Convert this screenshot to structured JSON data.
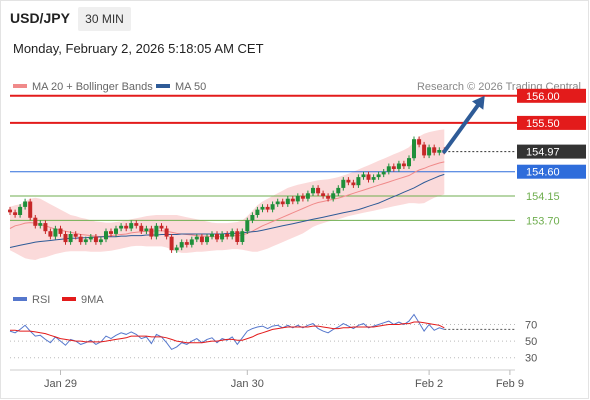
{
  "header": {
    "symbol": "USD/JPY",
    "interval": "30 MIN",
    "datetime": "Monday, February 2, 2026 5:18:05 AM CET"
  },
  "legend": {
    "items": [
      {
        "label": "MA 20 + Bollinger Bands",
        "color": "#f08a8a"
      },
      {
        "label": "MA 50",
        "color": "#2e5b97"
      }
    ],
    "credit": "Research © 2026 Trading Central"
  },
  "price_levels": [
    {
      "label": "156.00",
      "value": 156.0,
      "kind": "resistance",
      "color": "#e31b1b"
    },
    {
      "label": "155.50",
      "value": 155.5,
      "kind": "resistance",
      "color": "#e31b1b"
    },
    {
      "label": "154.97",
      "value": 154.97,
      "kind": "last",
      "color": "#333333"
    },
    {
      "label": "154.60",
      "value": 154.6,
      "kind": "pivot",
      "color": "#2f6ddb"
    },
    {
      "label": "154.15",
      "value": 154.15,
      "kind": "support",
      "color": "#6fae4f"
    },
    {
      "label": "153.70",
      "value": 153.7,
      "kind": "support",
      "color": "#6fae4f"
    }
  ],
  "rsi_panel": {
    "legend": [
      {
        "label": "RSI",
        "color": "#5577cc"
      },
      {
        "label": "9MA",
        "color": "#e31b1b"
      }
    ],
    "ticks": [
      {
        "label": "70",
        "value": 70
      },
      {
        "label": "50",
        "value": 50
      },
      {
        "label": "30",
        "value": 30
      }
    ]
  },
  "x_axis": {
    "ticks": [
      {
        "label": "Jan 29",
        "index": 10
      },
      {
        "label": "Jan 30",
        "index": 47
      },
      {
        "label": "Feb 2",
        "index": 83
      },
      {
        "label": "Feb 9",
        "index": 99
      }
    ]
  },
  "colors": {
    "up": "#1f8f3a",
    "down": "#c62828",
    "band_fill": "#fbdada",
    "ma20": "#f08a8a",
    "ma50": "#2e5b97",
    "arrow": "#2e5b97",
    "rsi": "#5577cc",
    "rsi_ma": "#e31b1b"
  },
  "chart_data": {
    "type": "candlestick",
    "symbol": "USD/JPY",
    "interval": "30 MIN",
    "ylim": [
      152.6,
      156.2
    ],
    "xlim": [
      0,
      100
    ],
    "candles": [
      [
        153.9,
        153.85
      ],
      [
        153.85,
        153.8
      ],
      [
        153.8,
        153.95
      ],
      [
        153.95,
        154.05
      ],
      [
        154.05,
        153.75
      ],
      [
        153.75,
        153.6
      ],
      [
        153.6,
        153.65
      ],
      [
        153.65,
        153.5
      ],
      [
        153.5,
        153.4
      ],
      [
        153.4,
        153.55
      ],
      [
        153.55,
        153.45
      ],
      [
        153.45,
        153.3
      ],
      [
        153.3,
        153.45
      ],
      [
        153.45,
        153.4
      ],
      [
        153.4,
        153.3
      ],
      [
        153.3,
        153.35
      ],
      [
        153.35,
        153.4
      ],
      [
        153.4,
        153.3
      ],
      [
        153.3,
        153.35
      ],
      [
        153.35,
        153.5
      ],
      [
        153.5,
        153.45
      ],
      [
        153.45,
        153.55
      ],
      [
        153.55,
        153.6
      ],
      [
        153.6,
        153.55
      ],
      [
        153.55,
        153.65
      ],
      [
        153.65,
        153.6
      ],
      [
        153.6,
        153.5
      ],
      [
        153.5,
        153.55
      ],
      [
        153.55,
        153.4
      ],
      [
        153.4,
        153.6
      ],
      [
        153.6,
        153.55
      ],
      [
        153.55,
        153.4
      ],
      [
        153.4,
        153.15
      ],
      [
        153.15,
        153.2
      ],
      [
        153.2,
        153.3
      ],
      [
        153.3,
        153.25
      ],
      [
        153.25,
        153.35
      ],
      [
        153.35,
        153.4
      ],
      [
        153.4,
        153.3
      ],
      [
        153.3,
        153.4
      ],
      [
        153.4,
        153.45
      ],
      [
        153.45,
        153.35
      ],
      [
        153.35,
        153.45
      ],
      [
        153.45,
        153.4
      ],
      [
        153.4,
        153.5
      ],
      [
        153.5,
        153.3
      ],
      [
        153.3,
        153.5
      ],
      [
        153.5,
        153.7
      ],
      [
        153.7,
        153.8
      ],
      [
        153.8,
        153.9
      ],
      [
        153.9,
        153.95
      ],
      [
        153.95,
        153.9
      ],
      [
        153.9,
        154.0
      ],
      [
        154.0,
        154.05
      ],
      [
        154.05,
        154.0
      ],
      [
        154.0,
        154.1
      ],
      [
        154.1,
        154.05
      ],
      [
        154.05,
        154.15
      ],
      [
        154.15,
        154.1
      ],
      [
        154.1,
        154.2
      ],
      [
        154.2,
        154.3
      ],
      [
        154.3,
        154.2
      ],
      [
        154.2,
        154.15
      ],
      [
        154.15,
        154.1
      ],
      [
        154.1,
        154.2
      ],
      [
        154.2,
        154.3
      ],
      [
        154.3,
        154.45
      ],
      [
        154.45,
        154.4
      ],
      [
        154.4,
        154.35
      ],
      [
        154.35,
        154.5
      ],
      [
        154.5,
        154.55
      ],
      [
        154.55,
        154.45
      ],
      [
        154.45,
        154.5
      ],
      [
        154.5,
        154.55
      ],
      [
        154.55,
        154.6
      ],
      [
        154.6,
        154.7
      ],
      [
        154.7,
        154.65
      ],
      [
        154.65,
        154.75
      ],
      [
        154.75,
        154.7
      ],
      [
        154.7,
        154.85
      ],
      [
        154.85,
        155.2
      ],
      [
        155.2,
        155.1
      ],
      [
        155.1,
        154.9
      ],
      [
        154.9,
        155.05
      ],
      [
        155.05,
        154.95
      ],
      [
        154.95,
        155.0
      ],
      [
        155.0,
        154.97
      ]
    ],
    "ma20": [
      153.55,
      153.6,
      153.62,
      153.65,
      153.66,
      153.65,
      153.62,
      153.6,
      153.57,
      153.54,
      153.52,
      153.5,
      153.48,
      153.46,
      153.44,
      153.43,
      153.42,
      153.41,
      153.4,
      153.41,
      153.42,
      153.43,
      153.44,
      153.45,
      153.47,
      153.48,
      153.49,
      153.5,
      153.5,
      153.51,
      153.51,
      153.5,
      153.48,
      153.46,
      153.45,
      153.44,
      153.43,
      153.42,
      153.41,
      153.41,
      153.4,
      153.4,
      153.4,
      153.41,
      153.42,
      153.42,
      153.43,
      153.46,
      153.5,
      153.55,
      153.6,
      153.64,
      153.68,
      153.72,
      153.76,
      153.8,
      153.84,
      153.88,
      153.92,
      153.96,
      154.0,
      154.03,
      154.05,
      154.07,
      154.09,
      154.11,
      154.14,
      154.17,
      154.2,
      154.23,
      154.26,
      154.29,
      154.32,
      154.35,
      154.38,
      154.41,
      154.44,
      154.47,
      154.5,
      154.53,
      154.58,
      154.63,
      154.66,
      154.7,
      154.73,
      154.76,
      154.78
    ],
    "bollinger_upper": [
      153.95,
      153.98,
      154.0,
      154.05,
      154.1,
      154.12,
      154.1,
      154.05,
      154.0,
      153.95,
      153.9,
      153.85,
      153.8,
      153.78,
      153.75,
      153.73,
      153.7,
      153.68,
      153.67,
      153.66,
      153.66,
      153.67,
      153.68,
      153.7,
      153.72,
      153.74,
      153.76,
      153.78,
      153.79,
      153.8,
      153.8,
      153.8,
      153.8,
      153.8,
      153.78,
      153.76,
      153.74,
      153.72,
      153.7,
      153.68,
      153.66,
      153.65,
      153.65,
      153.65,
      153.66,
      153.67,
      153.7,
      153.78,
      153.88,
      153.98,
      154.05,
      154.1,
      154.15,
      154.2,
      154.25,
      154.3,
      154.33,
      154.36,
      154.38,
      154.4,
      154.42,
      154.44,
      154.45,
      154.46,
      154.48,
      154.5,
      154.53,
      154.56,
      154.6,
      154.64,
      154.68,
      154.72,
      154.76,
      154.8,
      154.84,
      154.88,
      154.92,
      154.96,
      155.0,
      155.05,
      155.15,
      155.25,
      155.3,
      155.33,
      155.35,
      155.37,
      155.38
    ],
    "bollinger_lower": [
      153.15,
      153.1,
      153.05,
      153.0,
      152.98,
      152.97,
      153.0,
      153.02,
      153.05,
      153.08,
      153.1,
      153.12,
      153.13,
      153.13,
      153.13,
      153.13,
      153.12,
      153.12,
      153.12,
      153.13,
      153.14,
      153.16,
      153.18,
      153.2,
      153.22,
      153.23,
      153.23,
      153.22,
      153.22,
      153.22,
      153.22,
      153.2,
      153.16,
      153.12,
      153.1,
      153.1,
      153.11,
      153.12,
      153.12,
      153.13,
      153.14,
      153.15,
      153.15,
      153.16,
      153.17,
      153.17,
      153.16,
      153.14,
      153.12,
      153.12,
      153.15,
      153.18,
      153.22,
      153.26,
      153.3,
      153.34,
      153.38,
      153.42,
      153.46,
      153.52,
      153.58,
      153.62,
      153.65,
      153.68,
      153.7,
      153.72,
      153.75,
      153.78,
      153.8,
      153.82,
      153.84,
      153.86,
      153.88,
      153.9,
      153.92,
      153.94,
      153.96,
      153.98,
      154.0,
      154.02,
      154.02,
      154.01,
      154.02,
      154.07,
      154.12,
      154.15,
      154.18
    ],
    "ma50": [
      153.2,
      153.22,
      153.24,
      153.26,
      153.28,
      153.3,
      153.31,
      153.32,
      153.33,
      153.34,
      153.35,
      153.36,
      153.37,
      153.37,
      153.38,
      153.38,
      153.39,
      153.39,
      153.4,
      153.4,
      153.4,
      153.4,
      153.41,
      153.41,
      153.42,
      153.42,
      153.42,
      153.43,
      153.43,
      153.43,
      153.44,
      153.44,
      153.44,
      153.44,
      153.45,
      153.45,
      153.45,
      153.45,
      153.45,
      153.45,
      153.45,
      153.45,
      153.45,
      153.46,
      153.46,
      153.46,
      153.47,
      153.48,
      153.49,
      153.5,
      153.52,
      153.54,
      153.56,
      153.58,
      153.6,
      153.62,
      153.64,
      153.66,
      153.68,
      153.7,
      153.72,
      153.74,
      153.76,
      153.78,
      153.8,
      153.82,
      153.84,
      153.86,
      153.88,
      153.9,
      153.93,
      153.96,
      153.99,
      154.02,
      154.06,
      154.1,
      154.14,
      154.18,
      154.22,
      154.26,
      154.3,
      154.35,
      154.4,
      154.44,
      154.48,
      154.52,
      154.55
    ],
    "forecast_arrow": {
      "from": [
        86,
        154.97
      ],
      "to": [
        94,
        156.0
      ]
    },
    "rsi": {
      "ylim": [
        20,
        85
      ],
      "rsi": [
        62,
        60,
        64,
        69,
        62,
        56,
        57,
        52,
        48,
        55,
        50,
        45,
        52,
        50,
        46,
        48,
        51,
        46,
        49,
        56,
        53,
        57,
        60,
        58,
        61,
        58,
        53,
        55,
        47,
        58,
        55,
        48,
        40,
        43,
        48,
        46,
        50,
        53,
        48,
        52,
        54,
        48,
        53,
        51,
        55,
        46,
        54,
        62,
        65,
        67,
        68,
        65,
        68,
        69,
        66,
        69,
        66,
        69,
        66,
        69,
        71,
        65,
        62,
        60,
        64,
        67,
        71,
        68,
        65,
        69,
        71,
        66,
        68,
        70,
        72,
        74,
        70,
        73,
        70,
        74,
        82,
        72,
        62,
        70,
        63,
        66,
        64
      ],
      "rsi_ma": [
        63,
        63,
        62,
        62,
        62,
        61,
        60,
        59,
        57,
        55,
        53,
        52,
        51,
        50,
        50,
        49,
        49,
        49,
        49,
        50,
        51,
        52,
        53,
        54,
        56,
        56,
        56,
        56,
        55,
        55,
        55,
        54,
        52,
        50,
        49,
        48,
        48,
        48,
        48,
        49,
        50,
        50,
        51,
        52,
        52,
        51,
        51,
        53,
        55,
        58,
        60,
        62,
        64,
        65,
        66,
        67,
        67,
        67,
        67,
        67,
        68,
        68,
        67,
        66,
        65,
        65,
        66,
        66,
        67,
        67,
        67,
        67,
        67,
        68,
        69,
        70,
        70,
        70,
        71,
        71,
        73,
        73,
        72,
        71,
        70,
        69,
        66
      ]
    }
  }
}
